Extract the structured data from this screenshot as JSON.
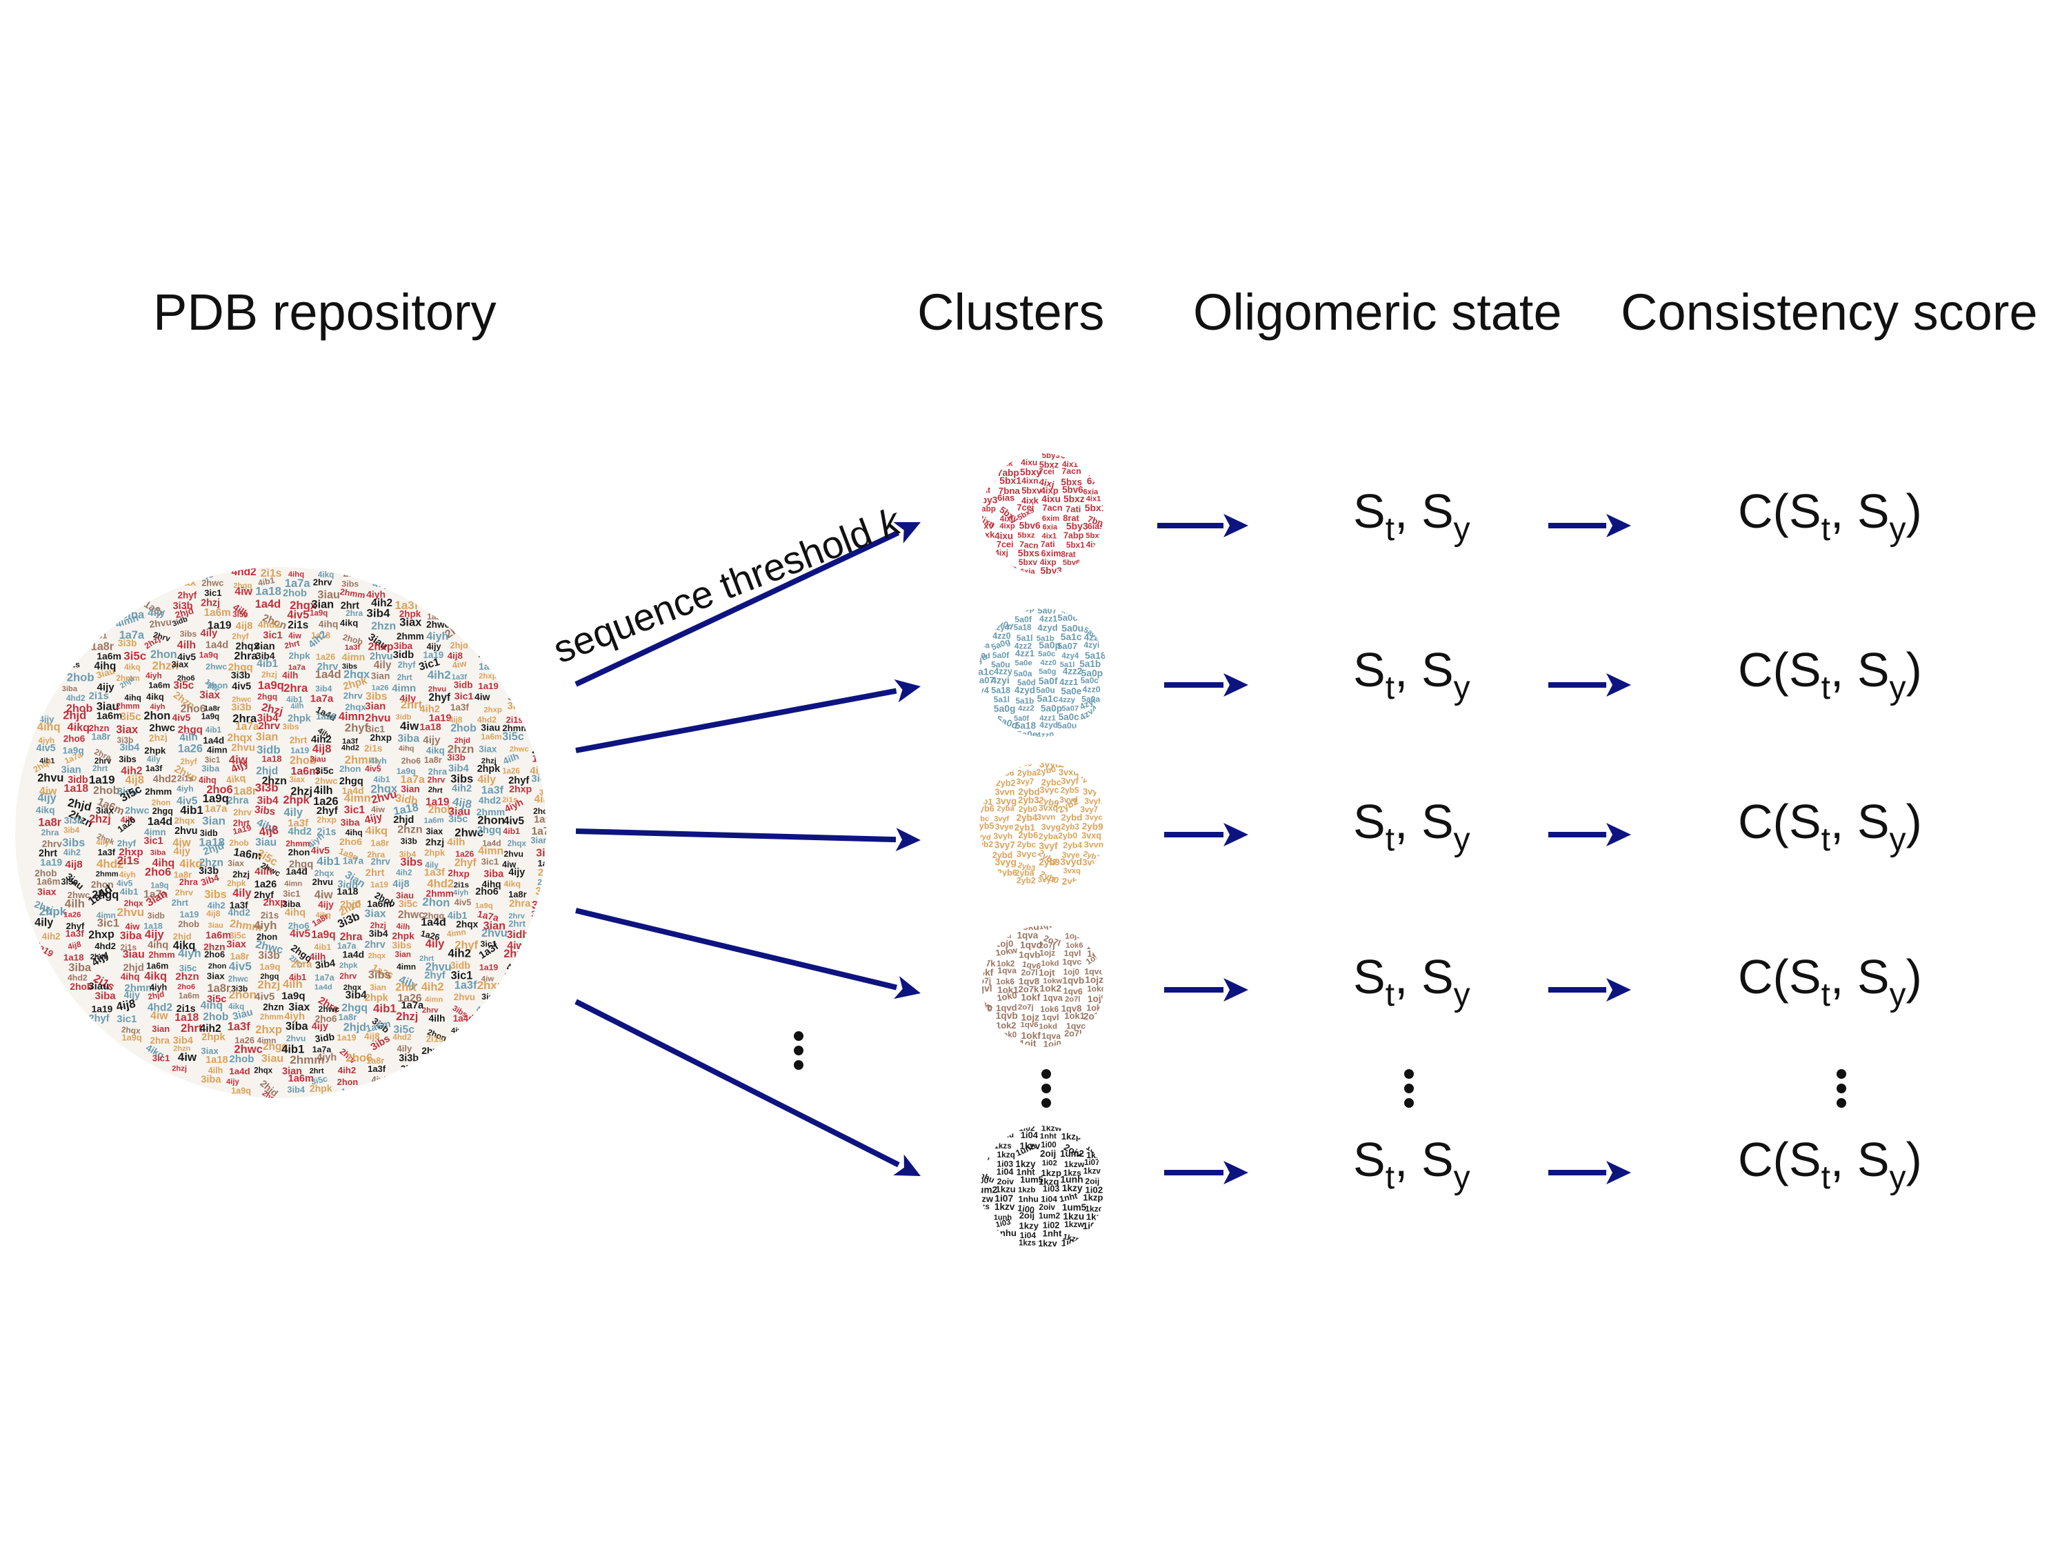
{
  "titles": {
    "pdb": "PDB repository",
    "clusters": "Clusters",
    "oligomeric": "Oligomeric state",
    "consistency": "Consistency score"
  },
  "edge_label": {
    "text": "sequence threshold ",
    "variable": "k"
  },
  "oligomeric_state": {
    "s1": "S",
    "s1_sub": "t",
    "sep": ", ",
    "s2": "S",
    "s2_sub": "y"
  },
  "consistency_score": {
    "prefix": "C(",
    "s1": "S",
    "s1_sub": "t",
    "sep": ", ",
    "s2": "S",
    "s2_sub": "y",
    "suffix": ")"
  },
  "colors": {
    "arrow": "#0d1480",
    "red": "#c0303a",
    "blue": "#6a9bb0",
    "orange": "#dba25a",
    "brown": "#9a7560",
    "black": "#1a1a1a"
  },
  "pdb_ids": [
    "4ij8",
    "4hd2",
    "2i1s",
    "4ihq",
    "4ikq",
    "2hzn",
    "3iax",
    "2hwc",
    "2hgq",
    "4ib1",
    "1a7a",
    "2hrv",
    "3ibs",
    "4ily",
    "2hyf",
    "3ic1",
    "4iw",
    "1a18",
    "2hob",
    "3iau",
    "2hmm",
    "4iyh",
    "2ho6",
    "1a8r",
    "3i3b",
    "2hzj",
    "4ilh",
    "1a4d",
    "2hqx",
    "3ian",
    "2hrt",
    "4ih2",
    "1a3f",
    "2hxp",
    "3iba",
    "4ijy",
    "2hjd",
    "1a6m",
    "3i5c",
    "2hon",
    "4iv5",
    "1a9q",
    "2hra",
    "3ib4",
    "2hpk",
    "1a26",
    "4imn",
    "2hvu",
    "3idb",
    "1a19"
  ],
  "cluster_ids": {
    "red": [
      "6xia",
      "5by3",
      "6ias",
      "4ixk",
      "4ixu",
      "5bxz",
      "4ix1",
      "7abp",
      "5bxy",
      "7cei",
      "7acn",
      "7ati",
      "5bx1",
      "4ixn",
      "4ixj",
      "5bxs",
      "6xim",
      "8rat",
      "7bna",
      "5bxv",
      "4ixp",
      "5bv6"
    ],
    "blue": [
      "5a0p",
      "5a07",
      "4zyi",
      "5a0d",
      "5a0f",
      "4zz1",
      "5a0c",
      "4zy4",
      "5a18",
      "4zyd",
      "5a0u",
      "5a0e",
      "4zz0",
      "5a1l",
      "5a1b",
      "5a1c",
      "4zzy",
      "5a0a",
      "5a0g",
      "4zz2"
    ],
    "orange": [
      "2yb9",
      "3vyd",
      "3vyh",
      "2yb6",
      "2yba",
      "2yb0",
      "3vxq",
      "2yb2",
      "3vy7",
      "2ybc",
      "3vyf",
      "2yb4",
      "3vvn",
      "2ybd",
      "3vyc",
      "2yb5",
      "3vye",
      "2yb1",
      "3vyg",
      "2yb3"
    ],
    "brown": [
      "1okd",
      "1qvc",
      "1ok0",
      "1okf",
      "1qva",
      "2o7l",
      "1ojt",
      "1oj0",
      "1qvd",
      "2o7j",
      "1ok6",
      "1qv8",
      "1okw",
      "1qvb",
      "1ojz",
      "1qvl",
      "1ok1",
      "2o7k",
      "1ok2",
      "1qv6"
    ],
    "black": [
      "1i02",
      "1kzw",
      "1i07",
      "1nhu",
      "1i04",
      "1nht",
      "1kzp",
      "1kzs",
      "1kzv",
      "1i00",
      "2oiv",
      "1um5",
      "1kzq",
      "1unh",
      "2oij",
      "1um2",
      "1kzu",
      "1kzb",
      "1i03",
      "1kzy"
    ]
  }
}
